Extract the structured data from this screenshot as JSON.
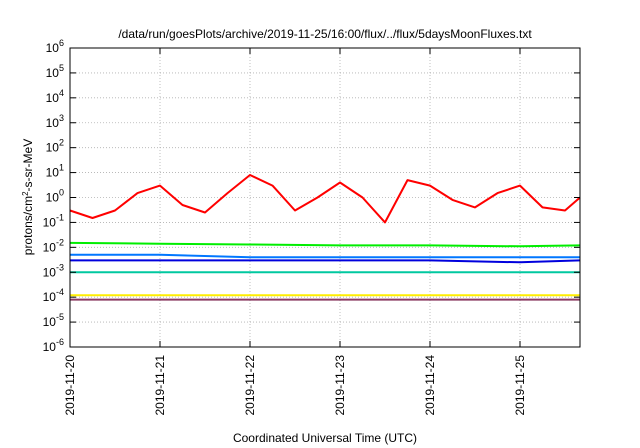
{
  "chart_data": {
    "type": "line",
    "title": "/data/run/goesPlots/archive/2019-11-25/16:00/flux/../flux/5daysMoonFluxes.txt",
    "xlabel": "Coordinated Universal Time (UTC)",
    "ylabel_base": "protons/cm",
    "ylabel_sup": "2",
    "ylabel_rest": "-s-sr-MeV",
    "y_scale": "log",
    "ylim": [
      1e-06,
      1000000.0
    ],
    "y_ticks": [
      {
        "base": "10",
        "exp": "-6",
        "value": -6
      },
      {
        "base": "10",
        "exp": "-5",
        "value": -5
      },
      {
        "base": "10",
        "exp": "-4",
        "value": -4
      },
      {
        "base": "10",
        "exp": "-3",
        "value": -3
      },
      {
        "base": "10",
        "exp": "-2",
        "value": -2
      },
      {
        "base": "10",
        "exp": "-1",
        "value": -1
      },
      {
        "base": "10",
        "exp": "0",
        "value": 0
      },
      {
        "base": "10",
        "exp": "1",
        "value": 1
      },
      {
        "base": "10",
        "exp": "2",
        "value": 2
      },
      {
        "base": "10",
        "exp": "3",
        "value": 3
      },
      {
        "base": "10",
        "exp": "4",
        "value": 4
      },
      {
        "base": "10",
        "exp": "5",
        "value": 5
      },
      {
        "base": "10",
        "exp": "6",
        "value": 6
      }
    ],
    "x_range": [
      "2019-11-20T00:00",
      "2019-11-25T16:00"
    ],
    "x_ticks": [
      "2019-11-20",
      "2019-11-21",
      "2019-11-22",
      "2019-11-23",
      "2019-11-24",
      "2019-11-25"
    ],
    "grid": true,
    "series": [
      {
        "color": "#ff0000",
        "x": [
          "2019-11-20T00:00",
          "2019-11-20T06:00",
          "2019-11-20T12:00",
          "2019-11-20T18:00",
          "2019-11-21T00:00",
          "2019-11-21T06:00",
          "2019-11-21T12:00",
          "2019-11-21T18:00",
          "2019-11-22T00:00",
          "2019-11-22T06:00",
          "2019-11-22T12:00",
          "2019-11-22T18:00",
          "2019-11-23T00:00",
          "2019-11-23T06:00",
          "2019-11-23T12:00",
          "2019-11-23T18:00",
          "2019-11-24T00:00",
          "2019-11-24T06:00",
          "2019-11-24T12:00",
          "2019-11-24T18:00",
          "2019-11-25T00:00",
          "2019-11-25T06:00",
          "2019-11-25T12:00",
          "2019-11-25T16:00"
        ],
        "y": [
          0.3,
          0.15,
          0.3,
          1.5,
          3,
          0.5,
          0.25,
          1.5,
          8,
          3,
          0.3,
          1,
          4,
          1,
          0.1,
          5,
          3,
          0.8,
          0.4,
          1.5,
          3,
          0.4,
          0.3,
          1.0
        ]
      },
      {
        "color": "#00ee00",
        "x": [
          "2019-11-20T00:00",
          "2019-11-21T00:00",
          "2019-11-22T00:00",
          "2019-11-23T00:00",
          "2019-11-24T00:00",
          "2019-11-25T00:00",
          "2019-11-25T16:00"
        ],
        "y": [
          0.015,
          0.014,
          0.013,
          0.012,
          0.012,
          0.011,
          0.012
        ]
      },
      {
        "color": "#0077ff",
        "x": [
          "2019-11-20T00:00",
          "2019-11-21T00:00",
          "2019-11-22T00:00",
          "2019-11-23T00:00",
          "2019-11-24T00:00",
          "2019-11-25T00:00",
          "2019-11-25T16:00"
        ],
        "y": [
          0.005,
          0.005,
          0.004,
          0.004,
          0.004,
          0.004,
          0.004
        ]
      },
      {
        "color": "#0000dd",
        "x": [
          "2019-11-20T00:00",
          "2019-11-21T00:00",
          "2019-11-22T00:00",
          "2019-11-23T00:00",
          "2019-11-24T00:00",
          "2019-11-25T00:00",
          "2019-11-25T16:00"
        ],
        "y": [
          0.003,
          0.003,
          0.003,
          0.003,
          0.003,
          0.0025,
          0.003
        ]
      },
      {
        "color": "#00c8a0",
        "x": [
          "2019-11-20T00:00",
          "2019-11-21T00:00",
          "2019-11-22T00:00",
          "2019-11-23T00:00",
          "2019-11-24T00:00",
          "2019-11-25T00:00",
          "2019-11-25T16:00"
        ],
        "y": [
          0.001,
          0.001,
          0.001,
          0.001,
          0.001,
          0.001,
          0.001
        ]
      },
      {
        "color": "#ffee00",
        "x": [
          "2019-11-20T00:00",
          "2019-11-21T00:00",
          "2019-11-22T00:00",
          "2019-11-23T00:00",
          "2019-11-24T00:00",
          "2019-11-25T00:00",
          "2019-11-25T16:00"
        ],
        "y": [
          0.00012,
          0.00012,
          0.00012,
          0.00012,
          0.00012,
          0.00012,
          0.00012
        ]
      },
      {
        "color": "#8b3a62",
        "x": [
          "2019-11-20T00:00",
          "2019-11-21T00:00",
          "2019-11-22T00:00",
          "2019-11-23T00:00",
          "2019-11-24T00:00",
          "2019-11-25T00:00",
          "2019-11-25T16:00"
        ],
        "y": [
          8e-05,
          8e-05,
          8e-05,
          8e-05,
          8e-05,
          8e-05,
          8e-05
        ]
      }
    ]
  }
}
